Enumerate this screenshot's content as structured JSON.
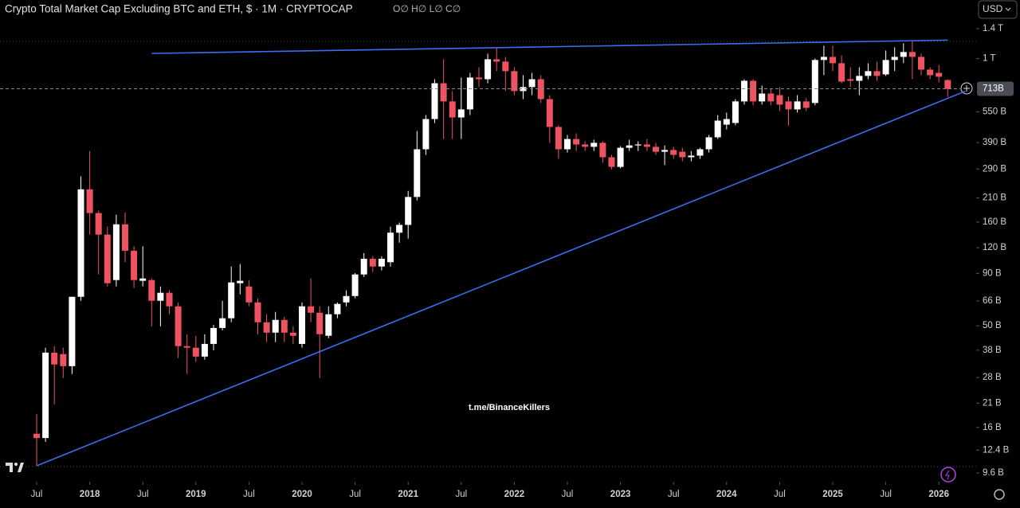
{
  "chart_data": {
    "type": "candlestick",
    "title": "Crypto Total Market Cap Excluding BTC and ETH, $ · 1M · CRYPTOCAP",
    "ohlc_status": "O∅ H∅ L∅ C∅",
    "currency": "USD",
    "watermark": "t.me/BinanceKillers",
    "log_scale": true,
    "up_color": "#ffffff",
    "down_color": "#ef5362",
    "trendline_color": "#3a6df0",
    "x": [
      "2017-07",
      "2017-08",
      "2017-09",
      "2017-10",
      "2017-11",
      "2017-12",
      "2018-01",
      "2018-02",
      "2018-03",
      "2018-04",
      "2018-05",
      "2018-06",
      "2018-07",
      "2018-08",
      "2018-09",
      "2018-10",
      "2018-11",
      "2018-12",
      "2019-01",
      "2019-02",
      "2019-03",
      "2019-04",
      "2019-05",
      "2019-06",
      "2019-07",
      "2019-08",
      "2019-09",
      "2019-10",
      "2019-11",
      "2019-12",
      "2020-01",
      "2020-02",
      "2020-03",
      "2020-04",
      "2020-05",
      "2020-06",
      "2020-07",
      "2020-08",
      "2020-09",
      "2020-10",
      "2020-11",
      "2020-12",
      "2021-01",
      "2021-02",
      "2021-03",
      "2021-04",
      "2021-05",
      "2021-06",
      "2021-07",
      "2021-08",
      "2021-09",
      "2021-10",
      "2021-11",
      "2021-12",
      "2022-01",
      "2022-02",
      "2022-03",
      "2022-04",
      "2022-05",
      "2022-06",
      "2022-07",
      "2022-08",
      "2022-09",
      "2022-10",
      "2022-11",
      "2022-12",
      "2023-01",
      "2023-02",
      "2023-03",
      "2023-04",
      "2023-05",
      "2023-06",
      "2023-07",
      "2023-08",
      "2023-09",
      "2023-10",
      "2023-11",
      "2023-12",
      "2024-01",
      "2024-02",
      "2024-03",
      "2024-04",
      "2024-05",
      "2024-06",
      "2024-07",
      "2024-08",
      "2024-09",
      "2024-10",
      "2024-11",
      "2024-12",
      "2025-01",
      "2025-02",
      "2025-03",
      "2025-04",
      "2025-05",
      "2025-06",
      "2025-07",
      "2025-08",
      "2025-09",
      "2025-10",
      "2025-11",
      "2025-12",
      "2026-01",
      "2026-02"
    ],
    "open": [
      14.9,
      14.2,
      37.0,
      36.4,
      31.8,
      69.2,
      231,
      177,
      139,
      83.5,
      156,
      116,
      82.8,
      83.5,
      66.2,
      72.4,
      62.2,
      39.8,
      39.1,
      35.4,
      40.8,
      48.8,
      54.4,
      80.6,
      77.7,
      65.0,
      52.0,
      46.3,
      53.4,
      46.3,
      40.8,
      62.2,
      57.9,
      44.7,
      56.9,
      65.0,
      69.8,
      88.9,
      106,
      97.2,
      102,
      142,
      155,
      212,
      362,
      508,
      759,
      619,
      517,
      566,
      809,
      794,
      993,
      967,
      869,
      695,
      727,
      794,
      635,
      465,
      362,
      406,
      382,
      372,
      389,
      331,
      297,
      368,
      378,
      382,
      372,
      352,
      359,
      352,
      331,
      337,
      362,
      414,
      477,
      486,
      619,
      780,
      619,
      676,
      664,
      619,
      566,
      619,
      608,
      985,
      1020,
      950,
      794,
      780,
      824,
      869,
      838,
      985,
      1020,
      1077,
      1020,
      884,
      853,
      787
    ],
    "high": [
      18.6,
      39.1,
      39.8,
      39.1,
      69.2,
      267,
      355,
      182,
      152,
      174,
      178,
      122,
      122,
      85.0,
      77.7,
      74.4,
      65.0,
      45.5,
      44.7,
      45.5,
      50.6,
      66.2,
      97.2,
      99.9,
      83.5,
      68.0,
      56.9,
      58.4,
      55.3,
      49.7,
      65.0,
      85.0,
      62.2,
      62.2,
      65.0,
      74.4,
      90.3,
      113,
      109,
      109,
      152,
      159,
      227,
      444,
      531,
      794,
      993,
      695,
      809,
      853,
      908,
      1057,
      1136,
      1020,
      908,
      831,
      853,
      831,
      664,
      473,
      425,
      433,
      396,
      403,
      396,
      340,
      375,
      403,
      396,
      406,
      389,
      378,
      372,
      368,
      355,
      368,
      425,
      531,
      546,
      635,
      794,
      794,
      740,
      714,
      727,
      653,
      664,
      641,
      1002,
      1156,
      1156,
      1039,
      908,
      908,
      950,
      967,
      1095,
      1136,
      1187,
      1220,
      1057,
      908,
      933,
      794
    ],
    "low": [
      10.4,
      13.6,
      20.7,
      27.8,
      29.1,
      66.2,
      139,
      88.9,
      77.7,
      77.7,
      102,
      76.4,
      77.7,
      49.7,
      49.7,
      56.9,
      34.8,
      29.1,
      33.3,
      34.2,
      38.0,
      47.5,
      52.0,
      71.1,
      62.2,
      45.5,
      41.6,
      41.6,
      41.6,
      40.8,
      39.1,
      52.0,
      27.8,
      43.5,
      54.4,
      62.2,
      68.0,
      86.5,
      91.3,
      93.0,
      97.2,
      127,
      133,
      204,
      340,
      486,
      406,
      406,
      406,
      531,
      727,
      759,
      869,
      695,
      664,
      635,
      664,
      608,
      389,
      325,
      349,
      355,
      355,
      355,
      311,
      289,
      292,
      355,
      355,
      355,
      340,
      303,
      325,
      316,
      316,
      325,
      349,
      406,
      452,
      473,
      597,
      592,
      597,
      592,
      556,
      473,
      546,
      556,
      592,
      831,
      869,
      759,
      727,
      664,
      794,
      780,
      824,
      869,
      950,
      794,
      831,
      794,
      766,
      653
    ],
    "close": [
      14.2,
      37.0,
      32.4,
      31.8,
      69.2,
      231,
      177,
      139,
      80.6,
      156,
      116,
      83.5,
      85.0,
      66.2,
      72.4,
      62.2,
      39.8,
      39.1,
      35.4,
      40.8,
      48.8,
      54.4,
      81.3,
      82.8,
      65.0,
      52.0,
      46.3,
      53.4,
      46.3,
      44.7,
      62.2,
      57.9,
      45.5,
      56.9,
      63.9,
      69.8,
      88.9,
      106,
      97.2,
      106,
      142,
      155,
      212,
      362,
      508,
      759,
      619,
      517,
      566,
      809,
      794,
      993,
      967,
      869,
      695,
      727,
      794,
      635,
      465,
      362,
      406,
      382,
      372,
      389,
      331,
      297,
      368,
      378,
      382,
      372,
      352,
      359,
      340,
      331,
      337,
      362,
      414,
      499,
      508,
      619,
      780,
      619,
      676,
      619,
      597,
      566,
      619,
      576,
      985,
      1020,
      950,
      773,
      780,
      824,
      869,
      824,
      985,
      1020,
      1077,
      1020,
      884,
      831,
      816,
      713
    ],
    "price_line": {
      "value": 713,
      "label": "713B"
    },
    "trendlines": [
      {
        "x": [
          "2018-08",
          "2026-02"
        ],
        "values": [
          1060,
          1231
        ]
      },
      {
        "x": [
          "2017-07",
          "2026-02"
        ],
        "values": [
          10.4,
          641
        ]
      }
    ],
    "ylim": [
      8.7,
      1930
    ],
    "yticks": [
      {
        "value": 1400,
        "label": "1.4 T"
      },
      {
        "value": 1000,
        "label": "1 T"
      },
      {
        "value": 550,
        "label": "550 B"
      },
      {
        "value": 390,
        "label": "390 B"
      },
      {
        "value": 290,
        "label": "290 B"
      },
      {
        "value": 210,
        "label": "210 B"
      },
      {
        "value": 160,
        "label": "160 B"
      },
      {
        "value": 120,
        "label": "120 B"
      },
      {
        "value": 90,
        "label": "90 B"
      },
      {
        "value": 66,
        "label": "66 B"
      },
      {
        "value": 50,
        "label": "50 B"
      },
      {
        "value": 38,
        "label": "38 B"
      },
      {
        "value": 28,
        "label": "28 B"
      },
      {
        "value": 21,
        "label": "21 B"
      },
      {
        "value": 16,
        "label": "16 B"
      },
      {
        "value": 12.4,
        "label": "12.4 B"
      },
      {
        "value": 9.6,
        "label": "9.6 B"
      }
    ],
    "xticks": [
      {
        "value": "2017-07",
        "label": "Jul"
      },
      {
        "value": "2018-01",
        "label": "2018"
      },
      {
        "value": "2018-07",
        "label": "Jul"
      },
      {
        "value": "2019-01",
        "label": "2019"
      },
      {
        "value": "2019-07",
        "label": "Jul"
      },
      {
        "value": "2020-01",
        "label": "2020"
      },
      {
        "value": "2020-07",
        "label": "Jul"
      },
      {
        "value": "2021-01",
        "label": "2021"
      },
      {
        "value": "2021-07",
        "label": "Jul"
      },
      {
        "value": "2022-01",
        "label": "2022"
      },
      {
        "value": "2022-07",
        "label": "Jul"
      },
      {
        "value": "2023-01",
        "label": "2023"
      },
      {
        "value": "2023-07",
        "label": "Jul"
      },
      {
        "value": "2024-01",
        "label": "2024"
      },
      {
        "value": "2024-07",
        "label": "Jul"
      },
      {
        "value": "2025-01",
        "label": "2025"
      },
      {
        "value": "2025-07",
        "label": "Jul"
      },
      {
        "value": "2026-01",
        "label": "2026"
      }
    ]
  }
}
